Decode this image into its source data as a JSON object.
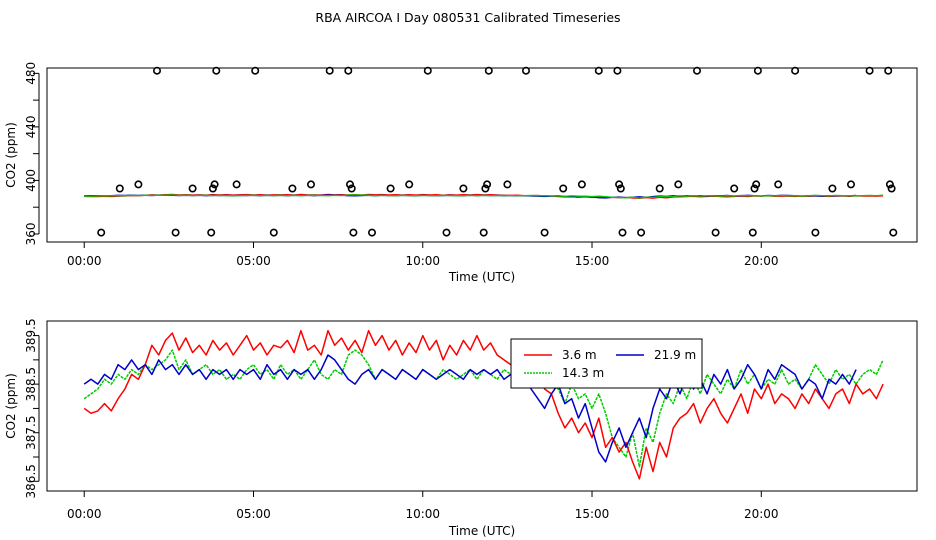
{
  "title": "RBA AIRCOA I  Day 080531  Calibrated Timeseries",
  "colors": {
    "red": "#ff0000",
    "green": "#00cc00",
    "blue": "#0000cc",
    "black": "#000000"
  },
  "chart_data": [
    {
      "type": "scatter+line",
      "xlabel": "Time (UTC)",
      "ylabel": "CO2 (ppm)",
      "xlim": [
        -1.1,
        24.6
      ],
      "ylim": [
        354,
        484
      ],
      "xticks": [
        0,
        5,
        10,
        15,
        20
      ],
      "xtick_labels": [
        "00:00",
        "05:00",
        "10:00",
        "15:00",
        "20:00"
      ],
      "yticks": [
        360,
        400,
        440,
        480
      ],
      "ytick_labels": [
        "360",
        "400",
        "440",
        "480"
      ],
      "ytick_minor": [
        380,
        420,
        460
      ],
      "flag_points": [
        {
          "x": 0.5,
          "y": 361
        },
        {
          "x": 1.05,
          "y": 394
        },
        {
          "x": 1.6,
          "y": 397
        },
        {
          "x": 2.15,
          "y": 482
        },
        {
          "x": 2.7,
          "y": 361
        },
        {
          "x": 3.2,
          "y": 394
        },
        {
          "x": 3.75,
          "y": 361
        },
        {
          "x": 3.8,
          "y": 394
        },
        {
          "x": 3.85,
          "y": 397
        },
        {
          "x": 3.9,
          "y": 482
        },
        {
          "x": 4.5,
          "y": 397
        },
        {
          "x": 5.05,
          "y": 482
        },
        {
          "x": 5.6,
          "y": 361
        },
        {
          "x": 6.15,
          "y": 394
        },
        {
          "x": 6.7,
          "y": 397
        },
        {
          "x": 7.25,
          "y": 482
        },
        {
          "x": 7.8,
          "y": 482
        },
        {
          "x": 7.85,
          "y": 397
        },
        {
          "x": 7.9,
          "y": 394
        },
        {
          "x": 7.95,
          "y": 361
        },
        {
          "x": 8.5,
          "y": 361
        },
        {
          "x": 9.05,
          "y": 394
        },
        {
          "x": 9.6,
          "y": 397
        },
        {
          "x": 10.15,
          "y": 482
        },
        {
          "x": 10.7,
          "y": 361
        },
        {
          "x": 11.2,
          "y": 394
        },
        {
          "x": 11.8,
          "y": 361
        },
        {
          "x": 11.85,
          "y": 394
        },
        {
          "x": 11.9,
          "y": 397
        },
        {
          "x": 11.95,
          "y": 482
        },
        {
          "x": 12.5,
          "y": 397
        },
        {
          "x": 13.05,
          "y": 482
        },
        {
          "x": 13.6,
          "y": 361
        },
        {
          "x": 14.15,
          "y": 394
        },
        {
          "x": 14.7,
          "y": 397
        },
        {
          "x": 15.2,
          "y": 482
        },
        {
          "x": 15.75,
          "y": 482
        },
        {
          "x": 15.8,
          "y": 397
        },
        {
          "x": 15.85,
          "y": 394
        },
        {
          "x": 15.9,
          "y": 361
        },
        {
          "x": 16.45,
          "y": 361
        },
        {
          "x": 17.0,
          "y": 394
        },
        {
          "x": 17.55,
          "y": 397
        },
        {
          "x": 18.1,
          "y": 482
        },
        {
          "x": 18.65,
          "y": 361
        },
        {
          "x": 19.2,
          "y": 394
        },
        {
          "x": 19.75,
          "y": 361
        },
        {
          "x": 19.8,
          "y": 394
        },
        {
          "x": 19.85,
          "y": 397
        },
        {
          "x": 19.9,
          "y": 482
        },
        {
          "x": 20.5,
          "y": 397
        },
        {
          "x": 21.0,
          "y": 482
        },
        {
          "x": 21.6,
          "y": 361
        },
        {
          "x": 22.1,
          "y": 394
        },
        {
          "x": 22.65,
          "y": 397
        },
        {
          "x": 23.2,
          "y": 482
        },
        {
          "x": 23.75,
          "y": 482
        },
        {
          "x": 23.8,
          "y": 397
        },
        {
          "x": 23.85,
          "y": 394
        },
        {
          "x": 23.9,
          "y": 361
        }
      ]
    },
    {
      "type": "line",
      "xlabel": "Time (UTC)",
      "ylabel": "CO2 (ppm)",
      "xlim": [
        -1.1,
        24.6
      ],
      "ylim": [
        386.3,
        389.8
      ],
      "xticks": [
        0,
        5,
        10,
        15,
        20
      ],
      "xtick_labels": [
        "00:00",
        "05:00",
        "10:00",
        "15:00",
        "20:00"
      ],
      "yticks": [
        386.5,
        387.5,
        388.5,
        389.5
      ],
      "ytick_labels": [
        "386.5",
        "387.5",
        "388.5",
        "389.5"
      ],
      "ytick_minor": [
        387.0,
        388.0,
        389.0
      ],
      "legend": {
        "position": "top-right-center",
        "entries": [
          "3.6 m",
          "21.9 m",
          "14.3 m"
        ]
      },
      "series": [
        {
          "name": "3.6 m",
          "color": "#ff0000",
          "x": [
            0.0,
            0.2,
            0.4,
            0.6,
            0.8,
            1.0,
            1.2,
            1.4,
            1.6,
            1.8,
            2.0,
            2.2,
            2.4,
            2.6,
            2.8,
            3.0,
            3.2,
            3.4,
            3.6,
            3.8,
            4.0,
            4.2,
            4.4,
            4.6,
            4.8,
            5.0,
            5.2,
            5.4,
            5.6,
            5.8,
            6.0,
            6.2,
            6.4,
            6.6,
            6.8,
            7.0,
            7.2,
            7.4,
            7.6,
            7.8,
            8.0,
            8.2,
            8.4,
            8.6,
            8.8,
            9.0,
            9.2,
            9.4,
            9.6,
            9.8,
            10.0,
            10.2,
            10.4,
            10.6,
            10.8,
            11.0,
            11.2,
            11.4,
            11.6,
            11.8,
            12.0,
            12.2,
            12.4,
            12.6,
            12.8,
            13.0,
            13.2,
            13.4,
            13.6,
            13.8,
            14.0,
            14.2,
            14.4,
            14.6,
            14.8,
            15.0,
            15.2,
            15.4,
            15.6,
            15.8,
            16.0,
            16.2,
            16.4,
            16.6,
            16.8,
            17.0,
            17.2,
            17.4,
            17.6,
            17.8,
            18.0,
            18.2,
            18.4,
            18.6,
            18.8,
            19.0,
            19.2,
            19.4,
            19.6,
            19.8,
            20.0,
            20.2,
            20.4,
            20.6,
            20.8,
            21.0,
            21.2,
            21.4,
            21.6,
            21.8,
            22.0,
            22.2,
            22.4,
            22.6,
            22.8,
            23.0,
            23.2,
            23.4,
            23.6
          ],
          "values": [
            388.0,
            387.9,
            387.95,
            388.1,
            387.95,
            388.2,
            388.4,
            388.7,
            388.6,
            388.9,
            389.3,
            389.1,
            389.4,
            389.55,
            389.2,
            389.45,
            389.15,
            389.3,
            389.1,
            389.4,
            389.2,
            389.35,
            389.1,
            389.3,
            389.5,
            389.2,
            389.35,
            389.1,
            389.3,
            389.25,
            389.4,
            389.15,
            389.6,
            389.2,
            389.3,
            389.1,
            389.6,
            389.3,
            389.45,
            389.2,
            389.4,
            389.15,
            389.6,
            389.3,
            389.5,
            389.2,
            389.4,
            389.1,
            389.35,
            389.15,
            389.5,
            389.2,
            389.4,
            389.0,
            389.3,
            389.1,
            389.4,
            389.2,
            389.5,
            389.2,
            389.35,
            389.1,
            389.0,
            388.9,
            389.0,
            388.6,
            388.7,
            388.8,
            388.4,
            388.3,
            387.9,
            387.6,
            387.8,
            387.5,
            387.7,
            387.4,
            387.8,
            387.2,
            387.4,
            387.1,
            387.3,
            386.9,
            386.55,
            387.2,
            386.7,
            387.3,
            387.0,
            387.6,
            387.8,
            387.9,
            388.1,
            387.7,
            388.0,
            388.2,
            387.9,
            387.7,
            388.0,
            388.3,
            387.9,
            388.4,
            388.2,
            388.5,
            388.1,
            388.3,
            388.2,
            388.0,
            388.3,
            388.1,
            388.4,
            388.2,
            388.0,
            388.3,
            388.4,
            388.1,
            388.5,
            388.3,
            388.4,
            388.2,
            388.5
          ]
        },
        {
          "name": "21.9 m",
          "color": "#0000cc",
          "x": [
            0.0,
            0.2,
            0.4,
            0.6,
            0.8,
            1.0,
            1.2,
            1.4,
            1.6,
            1.8,
            2.0,
            2.2,
            2.4,
            2.6,
            2.8,
            3.0,
            3.2,
            3.4,
            3.6,
            3.8,
            4.0,
            4.2,
            4.4,
            4.6,
            4.8,
            5.0,
            5.2,
            5.4,
            5.6,
            5.8,
            6.0,
            6.2,
            6.4,
            6.6,
            6.8,
            7.0,
            7.2,
            7.4,
            7.6,
            7.8,
            8.0,
            8.2,
            8.4,
            8.6,
            8.8,
            9.0,
            9.2,
            9.4,
            9.6,
            9.8,
            10.0,
            10.2,
            10.4,
            10.6,
            10.8,
            11.0,
            11.2,
            11.4,
            11.6,
            11.8,
            12.0,
            12.2,
            12.4,
            12.6,
            12.8,
            13.0,
            13.2,
            13.4,
            13.6,
            13.8,
            14.0,
            14.2,
            14.4,
            14.6,
            14.8,
            15.0,
            15.2,
            15.4,
            15.6,
            15.8,
            16.0,
            16.2,
            16.4,
            16.6,
            16.8,
            17.0,
            17.2,
            17.4,
            17.6,
            17.8,
            18.0,
            18.2,
            18.4,
            18.6,
            18.8,
            19.0,
            19.2,
            19.4,
            19.6,
            19.8,
            20.0,
            20.2,
            20.4,
            20.6,
            20.8,
            21.0,
            21.2,
            21.4,
            21.6,
            21.8,
            22.0,
            22.2,
            22.4,
            22.6,
            22.8
          ],
          "values": [
            388.5,
            388.6,
            388.5,
            388.7,
            388.6,
            388.9,
            388.8,
            389.0,
            388.8,
            388.9,
            388.7,
            389.0,
            388.8,
            388.9,
            388.7,
            388.9,
            388.7,
            388.8,
            388.6,
            388.8,
            388.7,
            388.8,
            388.6,
            388.8,
            388.7,
            388.8,
            388.6,
            388.9,
            388.7,
            388.8,
            388.6,
            388.8,
            388.7,
            388.8,
            388.6,
            388.8,
            389.1,
            389.0,
            388.8,
            388.6,
            388.5,
            388.7,
            388.8,
            388.6,
            388.8,
            388.7,
            388.6,
            388.8,
            388.7,
            388.6,
            388.8,
            388.7,
            388.6,
            388.7,
            388.8,
            388.7,
            388.6,
            388.8,
            388.7,
            388.8,
            388.7,
            388.8,
            388.6,
            388.7,
            388.5,
            388.7,
            388.4,
            388.2,
            388.0,
            388.3,
            388.5,
            388.1,
            388.2,
            387.8,
            388.1,
            387.6,
            387.1,
            386.9,
            387.3,
            387.6,
            387.2,
            387.5,
            387.8,
            387.4,
            388.0,
            388.4,
            388.2,
            388.6,
            388.3,
            388.7,
            388.4,
            388.6,
            388.3,
            388.7,
            388.5,
            388.8,
            388.4,
            388.6,
            388.9,
            388.7,
            388.4,
            388.8,
            388.6,
            388.9,
            388.8,
            388.7,
            388.4,
            388.6,
            388.5,
            388.2,
            388.6,
            388.5,
            388.7,
            388.5,
            388.8
          ]
        },
        {
          "name": "14.3 m",
          "color": "#00cc00",
          "x": [
            0.0,
            0.2,
            0.4,
            0.6,
            0.8,
            1.0,
            1.2,
            1.4,
            1.6,
            1.8,
            2.0,
            2.2,
            2.4,
            2.6,
            2.8,
            3.0,
            3.2,
            3.4,
            3.6,
            3.8,
            4.0,
            4.2,
            4.4,
            4.6,
            4.8,
            5.0,
            5.2,
            5.4,
            5.6,
            5.8,
            6.0,
            6.2,
            6.4,
            6.6,
            6.8,
            7.0,
            7.2,
            7.4,
            7.6,
            7.8,
            8.0,
            8.2,
            8.4,
            8.6,
            8.8,
            9.0,
            9.2,
            9.4,
            9.6,
            9.8,
            10.0,
            10.2,
            10.4,
            10.6,
            10.8,
            11.0,
            11.2,
            11.4,
            11.6,
            11.8,
            12.0,
            12.2,
            12.4,
            12.6,
            12.8,
            13.0,
            13.2,
            13.4,
            13.6,
            13.8,
            14.0,
            14.2,
            14.4,
            14.6,
            14.8,
            15.0,
            15.2,
            15.4,
            15.6,
            15.8,
            16.0,
            16.2,
            16.4,
            16.6,
            16.8,
            17.0,
            17.2,
            17.4,
            17.6,
            17.8,
            18.0,
            18.2,
            18.4,
            18.6,
            18.8,
            19.0,
            19.2,
            19.4,
            19.6,
            19.8,
            20.0,
            20.2,
            20.4,
            20.6,
            20.8,
            21.0,
            21.2,
            21.4,
            21.6,
            21.8,
            22.0,
            22.2,
            22.4,
            22.6,
            22.8,
            23.0,
            23.2,
            23.4,
            23.6
          ],
          "values": [
            388.2,
            388.3,
            388.4,
            388.6,
            388.5,
            388.7,
            388.6,
            388.8,
            388.7,
            388.9,
            388.8,
            388.9,
            389.0,
            389.2,
            388.8,
            389.0,
            388.7,
            388.8,
            388.9,
            388.7,
            388.8,
            388.6,
            388.7,
            388.6,
            388.8,
            388.9,
            388.7,
            388.8,
            388.6,
            388.9,
            388.7,
            388.8,
            388.6,
            388.8,
            389.0,
            388.7,
            388.6,
            388.8,
            388.7,
            389.1,
            389.2,
            389.1,
            388.9,
            388.6,
            388.8,
            388.7,
            388.6,
            388.8,
            388.7,
            388.6,
            388.8,
            388.7,
            388.6,
            388.8,
            388.7,
            388.6,
            388.7,
            388.8,
            388.6,
            388.8,
            388.7,
            388.6,
            388.8,
            388.7,
            388.6,
            388.7,
            388.8,
            388.6,
            388.7,
            388.5,
            388.4,
            388.1,
            388.5,
            388.2,
            388.3,
            388.0,
            388.3,
            387.9,
            387.4,
            387.2,
            387.0,
            387.5,
            386.8,
            387.6,
            387.3,
            387.9,
            388.3,
            388.1,
            388.5,
            388.2,
            388.6,
            388.3,
            388.7,
            388.5,
            388.3,
            388.6,
            388.4,
            388.8,
            388.5,
            388.7,
            388.4,
            388.6,
            388.5,
            388.8,
            388.5,
            388.6,
            388.4,
            388.6,
            388.9,
            388.7,
            388.5,
            388.8,
            388.6,
            388.7,
            388.5,
            388.7,
            388.8,
            388.7,
            389.0
          ]
        }
      ]
    }
  ]
}
